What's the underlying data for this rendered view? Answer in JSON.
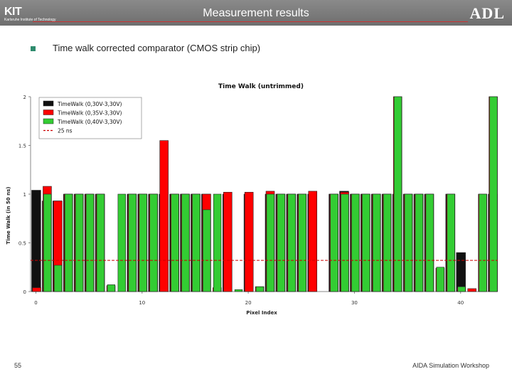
{
  "header": {
    "logo_left": "KIT",
    "logo_left_sub": "Karlsruhe Institute of Technology",
    "title": "Measurement results",
    "logo_right": "ADL"
  },
  "bullet_text": "Time walk corrected comparator (CMOS strip chip)",
  "chart_data": {
    "type": "bar",
    "title": "Time Walk (untrimmed)",
    "xlabel": "Pixel Index",
    "ylabel": "Time Walk (in 50 ns)",
    "xlim": [
      -0.5,
      43.5
    ],
    "ylim": [
      0,
      2
    ],
    "xticks": [
      "0",
      "10",
      "20",
      "30",
      "40"
    ],
    "yticks": [
      "0",
      "0.5",
      "1",
      "1.5",
      "2"
    ],
    "threshold": {
      "name": "25 ns",
      "value": 0.32,
      "color": "#cc0000"
    },
    "legend": [
      {
        "label": "TimeWalk (0,30V-3,30V)",
        "color": "#111111",
        "type": "bar"
      },
      {
        "label": "TimeWalk (0,35V-3,30V)",
        "color": "#ff0000",
        "type": "bar"
      },
      {
        "label": "TimeWalk (0,40V-3,30V)",
        "color": "#33cc33",
        "type": "bar"
      },
      {
        "label": "25 ns",
        "color": "#cc0000",
        "type": "dashed"
      }
    ],
    "series": [
      {
        "name": "TimeWalk (0,30V-3,30V)",
        "color": "#111111",
        "values": [
          1.04,
          0.93,
          0.93,
          1,
          1,
          1,
          1,
          0,
          0,
          1,
          1,
          1,
          1,
          1,
          1,
          1,
          1,
          0,
          1,
          0,
          1,
          0,
          1,
          1,
          1,
          1,
          1,
          0,
          1,
          1.03,
          1,
          1,
          1,
          1,
          1,
          1,
          1,
          1,
          0,
          1,
          0.4,
          0,
          0,
          1
        ]
      },
      {
        "name": "TimeWalk (0,35V-3,30V)",
        "color": "#ff0000",
        "values": [
          0.04,
          1.08,
          0.93,
          1,
          1,
          1,
          1,
          0.06,
          0,
          1,
          1,
          1,
          1.55,
          1,
          1,
          1,
          1,
          0.04,
          1.02,
          0,
          1.02,
          0.05,
          1.03,
          1,
          1,
          1,
          1.03,
          0,
          1,
          1.02,
          1,
          1,
          1,
          1,
          2,
          1,
          1,
          1,
          0.24,
          1,
          0.04,
          0.03,
          1,
          2
        ]
      },
      {
        "name": "TimeWalk (0,40V-3,30V)",
        "color": "#33cc33",
        "values": [
          0,
          1,
          0.27,
          1,
          1,
          1,
          1,
          0.07,
          1,
          1,
          1,
          1,
          0,
          1,
          1,
          1,
          0.84,
          1,
          0,
          0.02,
          0,
          0.05,
          1,
          1,
          1,
          1,
          0,
          0,
          1,
          1,
          1,
          1,
          1,
          1,
          2,
          1,
          1,
          1,
          0.25,
          1,
          0.05,
          0,
          1,
          2
        ]
      }
    ]
  },
  "footer": {
    "page": "55",
    "text": "AIDA Simulation Workshop"
  }
}
